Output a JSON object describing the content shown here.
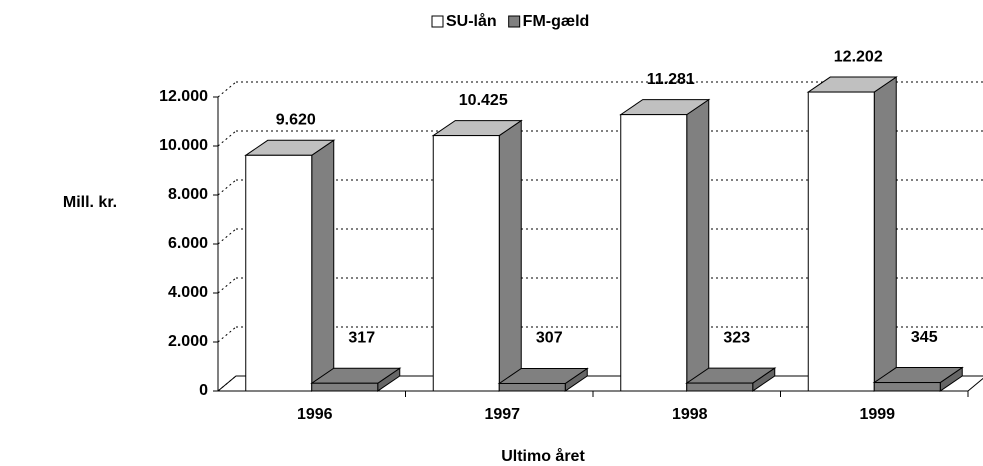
{
  "chart_data": {
    "type": "bar3d",
    "categories": [
      "1996",
      "1997",
      "1998",
      "1999"
    ],
    "series": [
      {
        "name": "SU-lån",
        "color": "#ffffff",
        "values": [
          9620,
          10425,
          11281,
          12202
        ],
        "value_labels": [
          "9.620",
          "10.425",
          "11.281",
          "12.202"
        ]
      },
      {
        "name": "FM-gæld",
        "color": "#808080",
        "values": [
          317,
          307,
          323,
          345
        ],
        "value_labels": [
          "317",
          "307",
          "323",
          "345"
        ]
      }
    ],
    "ylim": [
      0,
      12000
    ],
    "yticks": [
      0,
      {
        "value": 2000,
        "label": "2.000"
      },
      {
        "value": 4000,
        "label": "4.000"
      },
      {
        "value": 6000,
        "label": "6.000"
      },
      {
        "value": 8000,
        "label": "8.000"
      },
      {
        "value": 10000,
        "label": "10.000"
      },
      {
        "value": 12000,
        "label": "12.000"
      }
    ],
    "ylabel": "Mill. kr.",
    "xlabel": "Ultimo året",
    "grid": true
  }
}
